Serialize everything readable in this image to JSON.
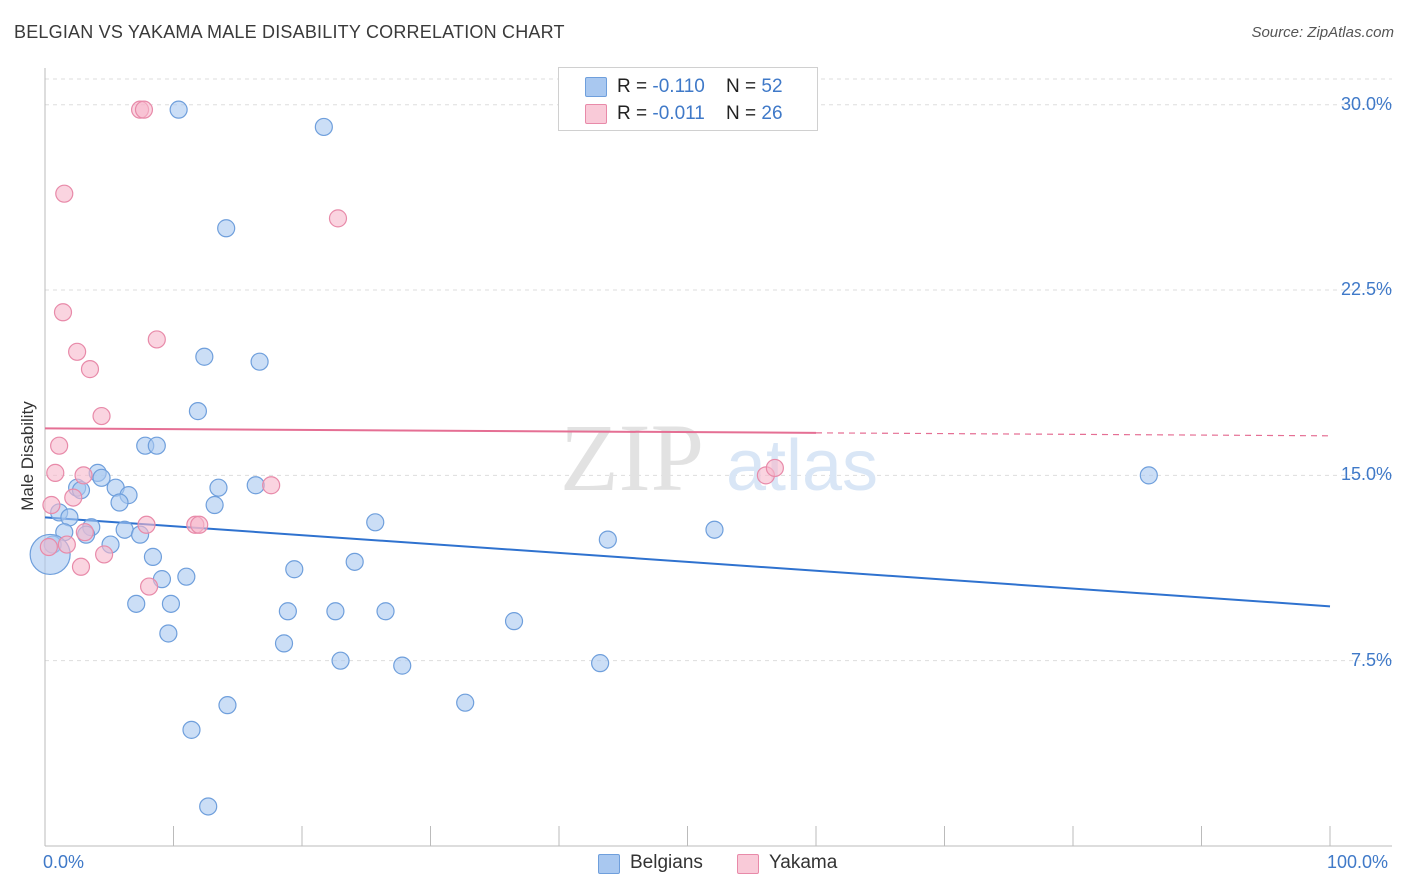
{
  "header": {
    "title": "BELGIAN VS YAKAMA MALE DISABILITY CORRELATION CHART",
    "source": "Source: ZipAtlas.com"
  },
  "legend": {
    "belgians": {
      "r_label": "R =",
      "r_value": "-0.110",
      "n_label": "N =",
      "n_value": "52"
    },
    "yakama": {
      "r_label": "R =",
      "r_value": "-0.011",
      "n_label": "N =",
      "n_value": "26"
    }
  },
  "watermark": {
    "zip": "ZIP",
    "atlas": "atlas"
  },
  "colors": {
    "blue_fill": "#a9c8f0",
    "blue_stroke": "#6f9fdc",
    "blue_line": "#2f72cf",
    "pink_fill": "#f6b8cb",
    "pink_stroke": "#e88aa9",
    "pink_line": "#e56f94",
    "grid": "#dddddd",
    "tick_text": "#3f79c8"
  },
  "chart_data": {
    "type": "scatter",
    "title": "BELGIAN VS YAKAMA MALE DISABILITY CORRELATION CHART",
    "xlabel": "",
    "ylabel": "Male Disability",
    "xlim": [
      0,
      100
    ],
    "ylim": [
      0,
      31
    ],
    "x_tick_labels": [
      "0.0%",
      "100.0%"
    ],
    "y_ticks": [
      7.5,
      15.0,
      22.5,
      30.0
    ],
    "y_tick_labels": [
      "7.5%",
      "15.0%",
      "22.5%",
      "30.0%"
    ],
    "legend_entries": [
      "Belgians",
      "Yakama"
    ],
    "series": [
      {
        "name": "Belgians",
        "r": -0.11,
        "n": 52,
        "trend": {
          "x0": 0,
          "y0": 13.3,
          "x1": 100,
          "y1": 9.7,
          "solid_until": 100
        },
        "points": [
          [
            10.4,
            29.8
          ],
          [
            21.7,
            29.1
          ],
          [
            14.1,
            25.0
          ],
          [
            12.4,
            19.8
          ],
          [
            16.7,
            19.6
          ],
          [
            11.9,
            17.6
          ],
          [
            7.8,
            16.2
          ],
          [
            8.7,
            16.2
          ],
          [
            4.1,
            15.1
          ],
          [
            4.4,
            14.9
          ],
          [
            2.5,
            14.5
          ],
          [
            2.8,
            14.4
          ],
          [
            5.5,
            14.5
          ],
          [
            6.5,
            14.2
          ],
          [
            13.5,
            14.5
          ],
          [
            16.4,
            14.6
          ],
          [
            5.8,
            13.9
          ],
          [
            13.2,
            13.8
          ],
          [
            1.1,
            13.5
          ],
          [
            1.9,
            13.3
          ],
          [
            3.6,
            12.9
          ],
          [
            1.5,
            12.7
          ],
          [
            3.2,
            12.6
          ],
          [
            6.2,
            12.8
          ],
          [
            7.4,
            12.6
          ],
          [
            25.7,
            13.1
          ],
          [
            0.6,
            12.2
          ],
          [
            5.1,
            12.2
          ],
          [
            8.4,
            11.7
          ],
          [
            9.1,
            10.8
          ],
          [
            11.0,
            10.9
          ],
          [
            19.4,
            11.2
          ],
          [
            24.1,
            11.5
          ],
          [
            7.1,
            9.8
          ],
          [
            9.8,
            9.8
          ],
          [
            18.9,
            9.5
          ],
          [
            22.6,
            9.5
          ],
          [
            26.5,
            9.5
          ],
          [
            36.5,
            9.1
          ],
          [
            9.6,
            8.6
          ],
          [
            18.6,
            8.2
          ],
          [
            23.0,
            7.5
          ],
          [
            27.8,
            7.3
          ],
          [
            43.2,
            7.4
          ],
          [
            32.7,
            5.8
          ],
          [
            14.2,
            5.7
          ],
          [
            11.4,
            4.7
          ],
          [
            12.7,
            1.6
          ],
          [
            43.8,
            12.4
          ],
          [
            52.1,
            12.8
          ],
          [
            85.9,
            15.0
          ],
          [
            0.4,
            11.8
          ]
        ]
      },
      {
        "name": "Yakama",
        "r": -0.011,
        "n": 26,
        "trend": {
          "x0": 0,
          "y0": 16.9,
          "x1": 100,
          "y1": 16.6,
          "solid_until": 60
        },
        "points": [
          [
            7.4,
            29.8
          ],
          [
            7.7,
            29.8
          ],
          [
            1.5,
            26.4
          ],
          [
            22.8,
            25.4
          ],
          [
            1.4,
            21.6
          ],
          [
            8.7,
            20.5
          ],
          [
            2.5,
            20.0
          ],
          [
            3.5,
            19.3
          ],
          [
            4.4,
            17.4
          ],
          [
            1.1,
            16.2
          ],
          [
            0.8,
            15.1
          ],
          [
            3.0,
            15.0
          ],
          [
            2.2,
            14.1
          ],
          [
            0.5,
            13.8
          ],
          [
            17.6,
            14.6
          ],
          [
            56.1,
            15.0
          ],
          [
            56.8,
            15.3
          ],
          [
            7.9,
            13.0
          ],
          [
            11.7,
            13.0
          ],
          [
            12.0,
            13.0
          ],
          [
            3.1,
            12.7
          ],
          [
            1.7,
            12.2
          ],
          [
            4.6,
            11.8
          ],
          [
            2.8,
            11.3
          ],
          [
            8.1,
            10.5
          ],
          [
            0.3,
            12.1
          ]
        ]
      }
    ]
  },
  "bottom_legend": {
    "belgians": "Belgians",
    "yakama": "Yakama"
  }
}
